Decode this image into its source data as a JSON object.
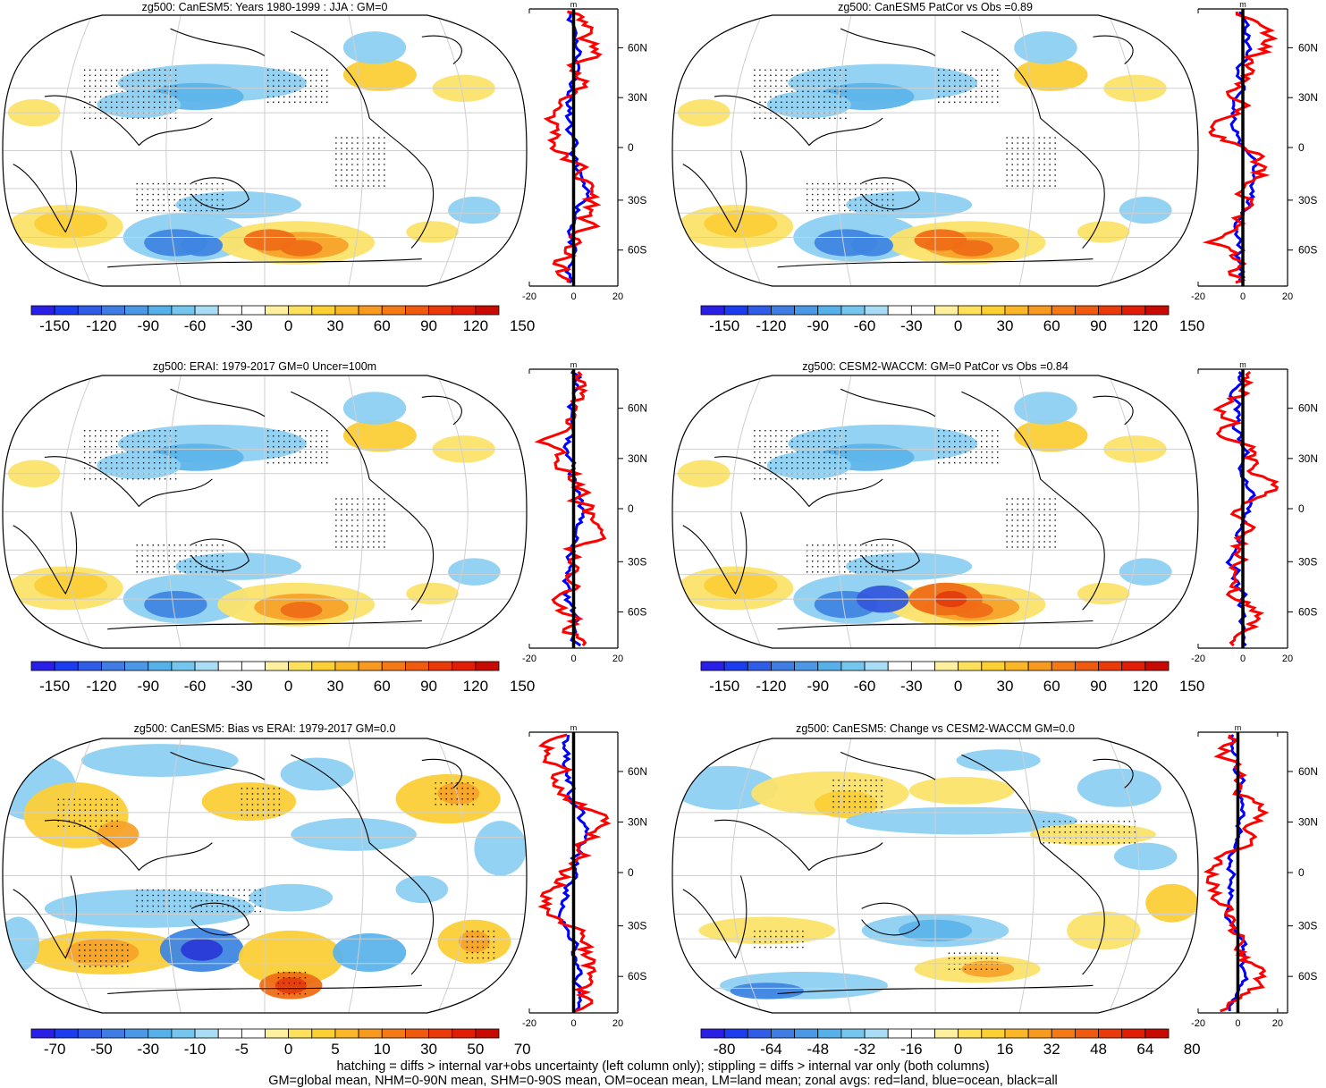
{
  "colors": {
    "map_ocean_blob_pos": "#f7d23a",
    "map_strong_pos": "#f06a10",
    "map_neg": "#5cb8ea",
    "map_strong_neg": "#3555e0",
    "land": "red",
    "ocean": "blue",
    "all": "black",
    "grid": "#cfcfcf"
  },
  "chart_data": [
    {
      "type": "heatmap",
      "panel": "row1-left",
      "title": "zg500: CanESM5: Years 1980-1999 : JJA : GM=0",
      "colorbar_ticks": [
        "-150",
        "-120",
        "-90",
        "-60",
        "-30",
        "0",
        "30",
        "60",
        "90",
        "120",
        "150"
      ],
      "colorbar_colors": [
        "#2a1fe6",
        "#1c3cf0",
        "#2f5de8",
        "#3f7de4",
        "#4a98e6",
        "#56b0ea",
        "#74c6ef",
        "#a9dcf5",
        "#ffffff",
        "#ffffff",
        "#fff0a0",
        "#fde15c",
        "#fccf33",
        "#fbb728",
        "#f99a20",
        "#f57a15",
        "#f05a0e",
        "#ea3a09",
        "#e11e05",
        "#c80a02"
      ],
      "zonal": {
        "axis_unit": "m",
        "xlim": [
          -20,
          20
        ],
        "xticks": [
          "-20",
          "0",
          "20"
        ],
        "lat_ticks": [
          "60N",
          "30N",
          "0",
          "30S",
          "60S"
        ]
      }
    },
    {
      "type": "heatmap",
      "panel": "row1-right",
      "title": "zg500: CanESM5 PatCor vs Obs =0.89",
      "colorbar_ticks": [
        "-150",
        "-120",
        "-90",
        "-60",
        "-30",
        "0",
        "30",
        "60",
        "90",
        "120",
        "150"
      ],
      "zonal": {
        "axis_unit": "m",
        "xlim": [
          -20,
          20
        ],
        "xticks": [
          "-20",
          "0",
          "20"
        ],
        "lat_ticks": [
          "60N",
          "30N",
          "0",
          "30S",
          "60S"
        ]
      }
    },
    {
      "type": "heatmap",
      "panel": "row2-left",
      "title": "zg500: ERAI: 1979-2017 GM=0 Uncer=100m",
      "colorbar_ticks": [
        "-150",
        "-120",
        "-90",
        "-60",
        "-30",
        "0",
        "30",
        "60",
        "90",
        "120",
        "150"
      ],
      "zonal": {
        "axis_unit": "m",
        "xlim": [
          -20,
          20
        ],
        "xticks": [
          "-20",
          "0",
          "20"
        ],
        "lat_ticks": [
          "60N",
          "30N",
          "0",
          "30S",
          "60S"
        ]
      }
    },
    {
      "type": "heatmap",
      "panel": "row2-right",
      "title": "zg500: CESM2-WACCM: GM=0 PatCor vs Obs =0.84",
      "colorbar_ticks": [
        "-150",
        "-120",
        "-90",
        "-60",
        "-30",
        "0",
        "30",
        "60",
        "90",
        "120",
        "150"
      ],
      "zonal": {
        "axis_unit": "m",
        "xlim": [
          -20,
          20
        ],
        "xticks": [
          "-20",
          "0",
          "20"
        ],
        "lat_ticks": [
          "60N",
          "30N",
          "0",
          "30S",
          "60S"
        ]
      }
    },
    {
      "type": "heatmap",
      "panel": "row3-left",
      "title": "zg500: CanESM5: Bias vs ERAI: 1979-2017 GM=0.0",
      "colorbar_ticks": [
        "-70",
        "-50",
        "-30",
        "-10",
        "-5",
        "0",
        "5",
        "10",
        "30",
        "50",
        "70"
      ],
      "zonal": {
        "axis_unit": "m",
        "xlim": [
          -20,
          20
        ],
        "xticks": [
          "-20",
          "0",
          "20"
        ],
        "lat_ticks": [
          "60N",
          "30N",
          "0",
          "30S",
          "60S"
        ]
      }
    },
    {
      "type": "heatmap",
      "panel": "row3-right",
      "title": "zg500: CanESM5: Change vs CESM2-WACCM GM=0.0",
      "colorbar_ticks": [
        "-80",
        "-64",
        "-48",
        "-32",
        "-16",
        "0",
        "16",
        "32",
        "48",
        "64",
        "80"
      ],
      "zonal": {
        "axis_unit": "m",
        "xlim": [
          -20,
          25
        ],
        "xticks": [
          "-20",
          "0",
          "20"
        ],
        "lat_ticks": [
          "60N",
          "30N",
          "0",
          "30S",
          "60S"
        ]
      }
    }
  ],
  "footer": {
    "line1": "hatching = diffs > internal var+obs uncertainty (left column only); stippling = diffs > internal var only (both columns)",
    "line2": "GM=global mean, NHM=0-90N mean, SHM=0-90S mean, OM=ocean mean, LM=land mean; zonal avgs: red=land, blue=ocean, black=all"
  }
}
